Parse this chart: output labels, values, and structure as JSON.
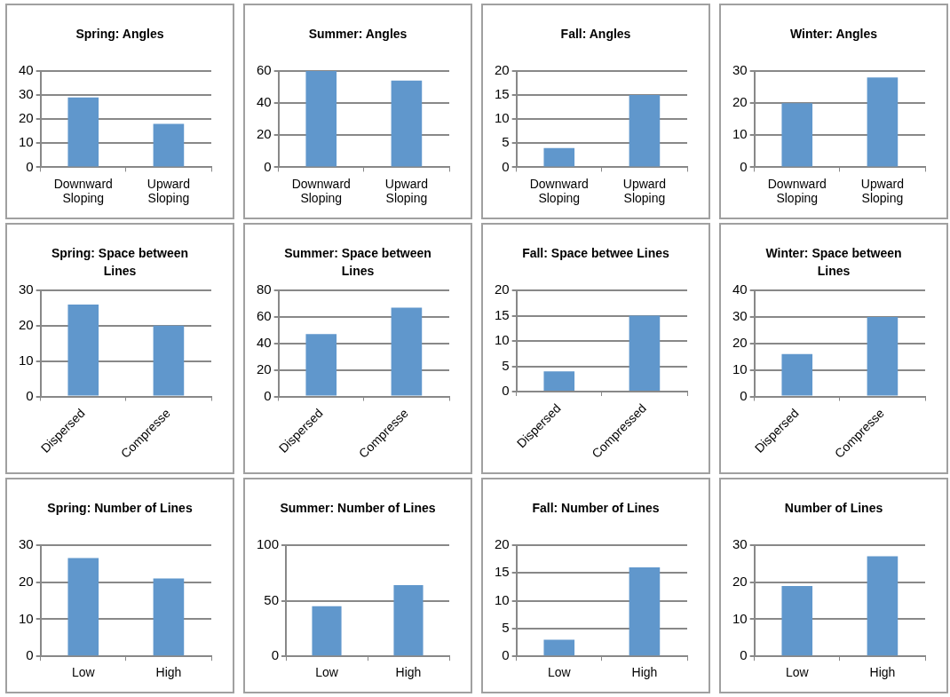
{
  "chart_data": [
    {
      "type": "bar",
      "title": "Spring: Angles",
      "categories": [
        "Downward Sloping",
        "Upward Sloping"
      ],
      "values": [
        29,
        18
      ],
      "color": "#6097cc",
      "ylim": [
        0,
        40
      ],
      "yticks": [
        0,
        10,
        20,
        30,
        40
      ],
      "grid": "y"
    },
    {
      "type": "bar",
      "title": "Summer: Angles",
      "categories": [
        "Downward Sloping",
        "Upward Sloping"
      ],
      "values": [
        60,
        54
      ],
      "color": "#6097cc",
      "ylim": [
        0,
        60
      ],
      "yticks": [
        0,
        20,
        40,
        60
      ],
      "grid": "y"
    },
    {
      "type": "bar",
      "title": "Fall: Angles",
      "categories": [
        "Downward Sloping",
        "Upward Sloping"
      ],
      "values": [
        4,
        15
      ],
      "color": "#6097cc",
      "ylim": [
        0,
        20
      ],
      "yticks": [
        0,
        5,
        10,
        15,
        20
      ],
      "grid": "y"
    },
    {
      "type": "bar",
      "title": "Winter: Angles",
      "categories": [
        "Downward Sloping",
        "Upward Sloping"
      ],
      "values": [
        20,
        28
      ],
      "color": "#6097cc",
      "ylim": [
        0,
        30
      ],
      "yticks": [
        0,
        10,
        20,
        30
      ],
      "grid": "y"
    },
    {
      "type": "bar",
      "title": "Spring: Space between Lines",
      "categories": [
        "Dispersed",
        "Compresse"
      ],
      "values": [
        26,
        20
      ],
      "color": "#6097cc",
      "ylim": [
        0,
        30
      ],
      "yticks": [
        0,
        10,
        20,
        30
      ],
      "grid": "y"
    },
    {
      "type": "bar",
      "title": "Summer: Space between Lines",
      "categories": [
        "Dispersed",
        "Compresse"
      ],
      "values": [
        47,
        67
      ],
      "color": "#6097cc",
      "ylim": [
        0,
        80
      ],
      "yticks": [
        0,
        20,
        40,
        60,
        80
      ],
      "grid": "y"
    },
    {
      "type": "bar",
      "title": "Fall: Space betwee Lines",
      "categories": [
        "Dispersed",
        "Compressed"
      ],
      "values": [
        4,
        15
      ],
      "color": "#6097cc",
      "ylim": [
        0,
        20
      ],
      "yticks": [
        0,
        5,
        10,
        15,
        20
      ],
      "grid": "y"
    },
    {
      "type": "bar",
      "title": "Winter: Space between Lines",
      "categories": [
        "Dispersed",
        "Compresse"
      ],
      "values": [
        16,
        30
      ],
      "color": "#6097cc",
      "ylim": [
        0,
        40
      ],
      "yticks": [
        0,
        10,
        20,
        30,
        40
      ],
      "grid": "y"
    },
    {
      "type": "bar",
      "title": "Spring: Number of Lines",
      "categories": [
        "Low",
        "High"
      ],
      "values": [
        26.5,
        21
      ],
      "color": "#6097cc",
      "ylim": [
        0,
        30
      ],
      "yticks": [
        0,
        10,
        20,
        30
      ],
      "grid": "y"
    },
    {
      "type": "bar",
      "title": "Summer: Number of Lines",
      "categories": [
        "Low",
        "High"
      ],
      "values": [
        45,
        64
      ],
      "color": "#6097cc",
      "ylim": [
        0,
        100
      ],
      "yticks": [
        0,
        50,
        100
      ],
      "grid": "y"
    },
    {
      "type": "bar",
      "title": "Fall: Number of Lines",
      "categories": [
        "Low",
        "High"
      ],
      "values": [
        3,
        16
      ],
      "color": "#6097cc",
      "ylim": [
        0,
        20
      ],
      "yticks": [
        0,
        5,
        10,
        15,
        20
      ],
      "grid": "y"
    },
    {
      "type": "bar",
      "title": "Number of Lines",
      "categories": [
        "Low",
        "High"
      ],
      "values": [
        19,
        27
      ],
      "color": "#6097cc",
      "ylim": [
        0,
        30
      ],
      "yticks": [
        0,
        10,
        20,
        30
      ],
      "grid": "y"
    }
  ]
}
